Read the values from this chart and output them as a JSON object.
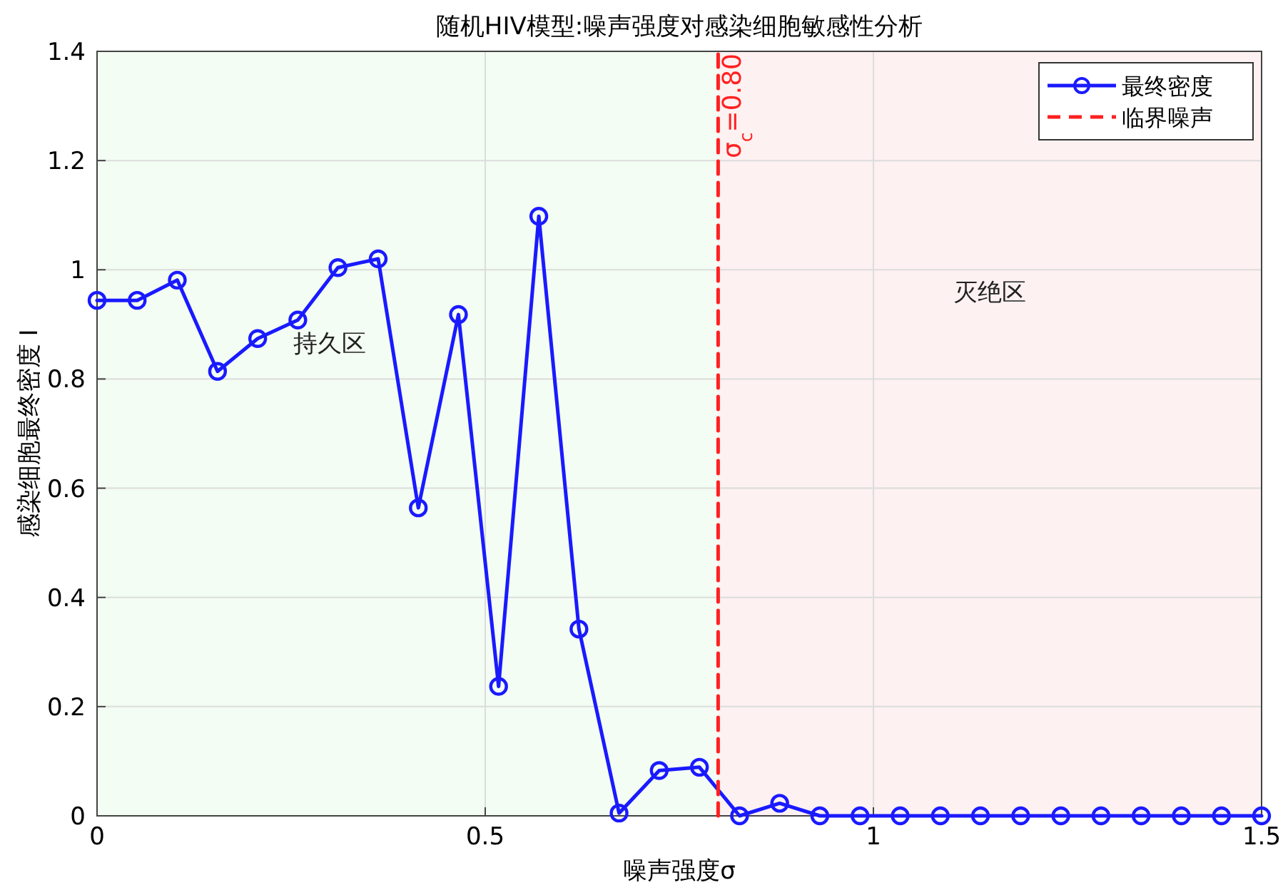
{
  "chart_data": {
    "type": "line",
    "title": "随机HIV模型:噪声强度对感染细胞敏感性分析",
    "xlabel": "噪声强度σ",
    "ylabel": "感染细胞最终密度 I",
    "x": [
      0,
      0.0517,
      0.1034,
      0.1552,
      0.2069,
      0.2586,
      0.3103,
      0.3621,
      0.4138,
      0.4655,
      0.5172,
      0.569,
      0.6207,
      0.6724,
      0.7241,
      0.7759,
      0.8276,
      0.8793,
      0.931,
      0.9828,
      1.0345,
      1.0862,
      1.1379,
      1.1897,
      1.2414,
      1.2931,
      1.3448,
      1.3966,
      1.4483,
      1.5
    ],
    "series": [
      {
        "name": "最终密度",
        "color": "#1a1aff",
        "marker": "circle",
        "line_style": "solid",
        "values": [
          0.944,
          0.944,
          0.981,
          0.814,
          0.874,
          0.908,
          1.004,
          1.02,
          0.564,
          0.918,
          0.237,
          1.098,
          0.342,
          0.005,
          0.083,
          0.089,
          0.0,
          0.023,
          0.0,
          0.0,
          0.0,
          0.0,
          0.0,
          0.0,
          0.0,
          0.0,
          0.0,
          0.0,
          0.0,
          0.0
        ]
      },
      {
        "name": "临界噪声",
        "color": "#ff2020",
        "marker": "none",
        "line_style": "dashed",
        "x": [
          0.8,
          0.8
        ],
        "values": [
          0,
          1.4
        ]
      }
    ],
    "bands": [
      {
        "axis": "x",
        "from": 0,
        "to": 0.8,
        "label": "持久区",
        "color": "#f3fdf3"
      },
      {
        "axis": "x",
        "from": 0.8,
        "to": 1.5,
        "label": "灭绝区",
        "color": "#fdf1f1"
      }
    ],
    "annotations": [
      {
        "text": "σ$_{c}$=0.80",
        "x": 0.8,
        "y": 1.3
      }
    ],
    "xlim": [
      0,
      1.5
    ],
    "xticks": [
      0,
      0.5,
      1,
      1.5
    ],
    "ylim": [
      0,
      1.4
    ],
    "yticks": [
      0,
      0.2,
      0.4,
      0.6,
      0.8,
      1,
      1.2,
      1.4
    ],
    "grid": true,
    "legend": "top right"
  }
}
